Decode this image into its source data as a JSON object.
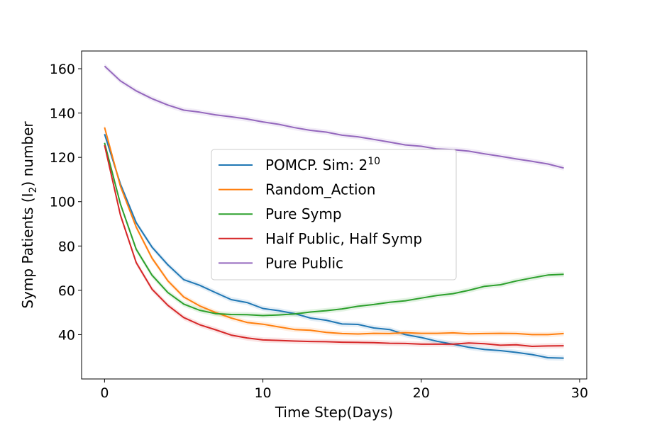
{
  "chart_data": {
    "type": "line",
    "xlabel": "Time Step(Days)",
    "ylabel_main": "Symp Patients (I",
    "ylabel_sub": "2",
    "ylabel_tail": ") number",
    "xlim": [
      -1.45,
      30.45
    ],
    "ylim": [
      20,
      168
    ],
    "xticks": [
      0,
      10,
      20,
      30
    ],
    "yticks": [
      40,
      60,
      80,
      100,
      120,
      140,
      160
    ],
    "grid": false,
    "legend_position": "center",
    "series": [
      {
        "name": "POMCP. Sim: 2",
        "name_sup": "10",
        "color": "#1f77b4",
        "x": [
          0,
          1,
          2,
          3,
          4,
          5,
          6,
          7,
          8,
          9,
          10,
          11,
          12,
          13,
          14,
          15,
          16,
          17,
          18,
          19,
          20,
          21,
          22,
          23,
          24,
          25,
          26,
          27,
          28,
          29
        ],
        "values": [
          130.5,
          108,
          90.5,
          79.5,
          71.5,
          64.8,
          62.3,
          59,
          55.8,
          54.5,
          51.8,
          50.8,
          49.5,
          47.5,
          46.5,
          44.8,
          44.6,
          43,
          42.3,
          40,
          38.7,
          37,
          35.7,
          34.3,
          33.3,
          32.8,
          32,
          31,
          29.6,
          29.4
        ]
      },
      {
        "name": "Random_Action",
        "color": "#ff7f0e",
        "x": [
          0,
          1,
          2,
          3,
          4,
          5,
          6,
          7,
          8,
          9,
          10,
          11,
          12,
          13,
          14,
          15,
          16,
          17,
          18,
          19,
          20,
          21,
          22,
          23,
          24,
          25,
          26,
          27,
          28,
          29
        ],
        "values": [
          133.5,
          107,
          88.5,
          74.5,
          64.3,
          57,
          53,
          50,
          47.5,
          45.5,
          44.7,
          43.5,
          42.3,
          42,
          41,
          40.5,
          40.3,
          40.6,
          40.5,
          40.9,
          40.6,
          40.6,
          40.8,
          40.4,
          40.5,
          40.6,
          40.5,
          40,
          40,
          40.5
        ]
      },
      {
        "name": "Pure Symp",
        "color": "#2ca02c",
        "x": [
          0,
          1,
          2,
          3,
          4,
          5,
          6,
          7,
          8,
          9,
          10,
          11,
          12,
          13,
          14,
          15,
          16,
          17,
          18,
          19,
          20,
          21,
          22,
          23,
          24,
          25,
          26,
          27,
          28,
          29
        ],
        "values": [
          126.5,
          99,
          78.5,
          66.8,
          59,
          53.8,
          51,
          49.5,
          49.1,
          49,
          48.6,
          48.9,
          49.3,
          50.2,
          50.8,
          51.6,
          52.8,
          53.6,
          54.6,
          55.3,
          56.5,
          57.7,
          58.5,
          60,
          61.8,
          62.5,
          64.2,
          65.6,
          66.9,
          67.2
        ]
      },
      {
        "name": "Half Public, Half Symp",
        "color": "#d62728",
        "x": [
          0,
          1,
          2,
          3,
          4,
          5,
          6,
          7,
          8,
          9,
          10,
          11,
          12,
          13,
          14,
          15,
          16,
          17,
          18,
          19,
          20,
          21,
          22,
          23,
          24,
          25,
          26,
          27,
          28,
          29
        ],
        "values": [
          125.5,
          94,
          72.5,
          60.5,
          53.2,
          47.7,
          44.5,
          42.2,
          39.8,
          38.5,
          37.6,
          37.4,
          37.1,
          36.9,
          36.8,
          36.6,
          36.5,
          36.4,
          36.1,
          36,
          35.7,
          35.7,
          35.7,
          36.2,
          35.9,
          35.2,
          35.4,
          34.7,
          34.9,
          35
        ]
      },
      {
        "name": "Pure Public",
        "color": "#9467bd",
        "x": [
          0,
          1,
          2,
          3,
          4,
          5,
          6,
          7,
          8,
          9,
          10,
          11,
          12,
          13,
          14,
          15,
          16,
          17,
          18,
          19,
          20,
          21,
          22,
          23,
          24,
          25,
          26,
          27,
          28,
          29
        ],
        "values": [
          161.2,
          154.5,
          150,
          146.5,
          143.6,
          141.3,
          140.4,
          139.2,
          138.3,
          137.3,
          136,
          134.9,
          133.4,
          132.2,
          131.4,
          130,
          129.3,
          128.1,
          126.9,
          125.6,
          125,
          123.8,
          123.5,
          122.8,
          121.6,
          120.5,
          119.3,
          118.2,
          117,
          115.2
        ]
      }
    ]
  }
}
